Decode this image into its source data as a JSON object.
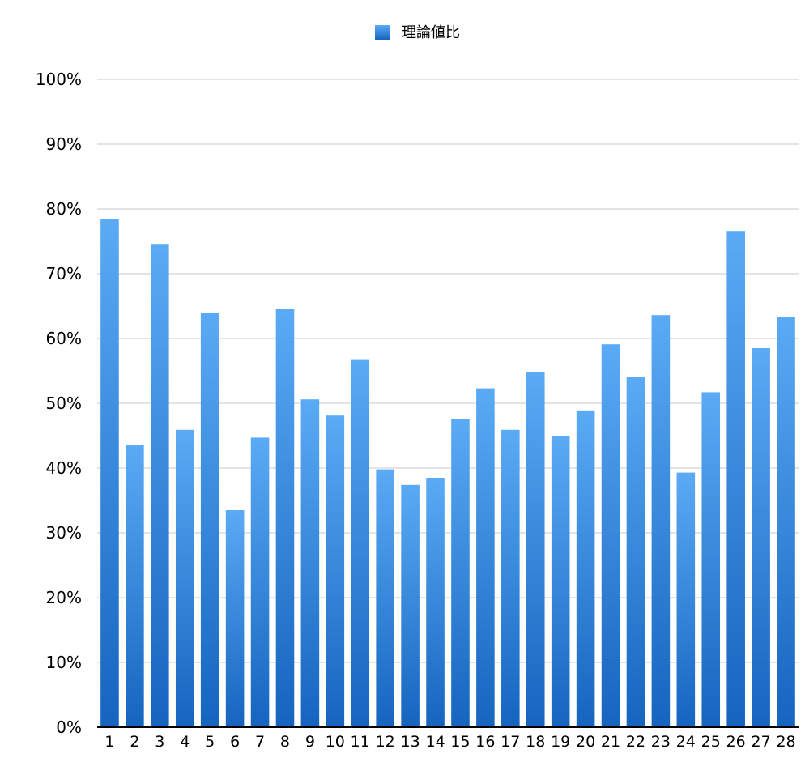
{
  "chart_data": {
    "type": "bar",
    "title": "",
    "xlabel": "",
    "ylabel": "",
    "ylim": [
      0,
      100
    ],
    "y_tick_values": [
      0,
      10,
      20,
      30,
      40,
      50,
      60,
      70,
      80,
      90,
      100
    ],
    "y_tick_labels": [
      "0%",
      "10%",
      "20%",
      "30%",
      "40%",
      "50%",
      "60%",
      "70%",
      "80%",
      "90%",
      "100%"
    ],
    "grid": true,
    "legend_position": "top-center",
    "categories": [
      "1",
      "2",
      "3",
      "4",
      "5",
      "6",
      "7",
      "8",
      "9",
      "10",
      "11",
      "12",
      "13",
      "14",
      "15",
      "16",
      "17",
      "18",
      "19",
      "20",
      "21",
      "22",
      "23",
      "24",
      "25",
      "26",
      "27",
      "28"
    ],
    "series": [
      {
        "name": "理論値比",
        "color_top": "#5aaaf5",
        "color_bottom": "#1565c0",
        "values": [
          78.5,
          43.5,
          74.6,
          45.9,
          64.0,
          33.5,
          44.7,
          64.5,
          50.6,
          48.1,
          56.8,
          39.8,
          37.4,
          38.5,
          47.5,
          52.3,
          45.9,
          54.8,
          44.9,
          48.9,
          59.1,
          54.1,
          63.6,
          39.3,
          51.7,
          76.6,
          58.5,
          63.3
        ]
      }
    ]
  }
}
